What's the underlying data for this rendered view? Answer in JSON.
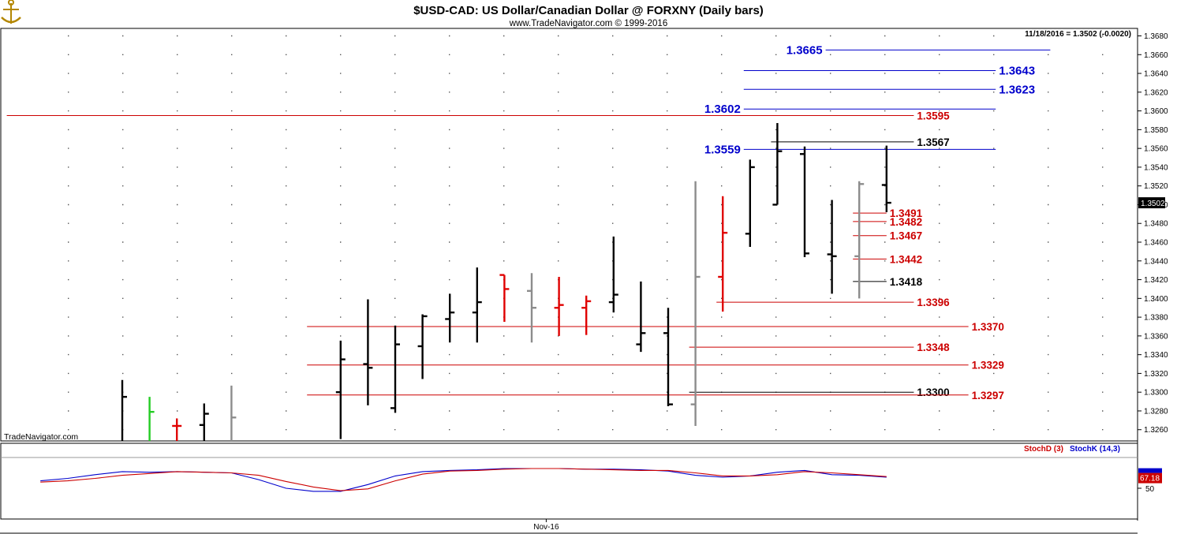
{
  "header": {
    "title": "$USD-CAD:  US Dollar/Canadian Dollar @ FORXNY  (Daily bars)",
    "subtitle": "www.TradeNavigator.com © 1999-2016",
    "readout": "11/18/2016 = 1.3502 (-0.0020)",
    "watermark": "TradeNavigator.com"
  },
  "chart_data": [
    {
      "type": "ohlc",
      "title": "$USD-CAD:  US Dollar/Canadian Dollar @ FORXNY  (Daily bars)",
      "ylim": [
        1.3248,
        1.3688
      ],
      "y_ticks": [
        "1.3260",
        "1.3280",
        "1.3300",
        "1.3320",
        "1.3340",
        "1.3360",
        "1.3380",
        "1.3400",
        "1.3420",
        "1.3440",
        "1.3460",
        "1.3480",
        "1.3500",
        "1.3520",
        "1.3540",
        "1.3560",
        "1.3580",
        "1.3600",
        "1.3620",
        "1.3640",
        "1.3660",
        "1.3680"
      ],
      "last_price": "1.3502",
      "x_label": "Nov-16",
      "x_label_bar": 19,
      "bar_colors": {
        "black": "#000000",
        "red": "#e00000",
        "gray": "#8c8c8c",
        "green": "#22cc22"
      },
      "bars": [
        {
          "i": 0,
          "o": 1.323,
          "h": 1.3313,
          "l": 1.318,
          "c": 1.3295,
          "color": "black"
        },
        {
          "i": 1,
          "o": 1.324,
          "h": 1.3295,
          "l": 1.32,
          "c": 1.3279,
          "color": "green"
        },
        {
          "i": 2,
          "o": 1.3264,
          "h": 1.3272,
          "l": 1.322,
          "c": 1.3264,
          "color": "red"
        },
        {
          "i": 3,
          "o": 1.3265,
          "h": 1.3288,
          "l": 1.32,
          "c": 1.3277,
          "color": "black"
        },
        {
          "i": 4,
          "o": 1.324,
          "h": 1.3307,
          "l": 1.318,
          "c": 1.3273,
          "color": "gray"
        },
        {
          "i": 8,
          "o": 1.33,
          "h": 1.3355,
          "l": 1.325,
          "c": 1.3335,
          "color": "black"
        },
        {
          "i": 9,
          "o": 1.333,
          "h": 1.3399,
          "l": 1.3286,
          "c": 1.3326,
          "color": "black"
        },
        {
          "i": 10,
          "o": 1.3283,
          "h": 1.3371,
          "l": 1.3278,
          "c": 1.3351,
          "color": "black"
        },
        {
          "i": 11,
          "o": 1.3349,
          "h": 1.3383,
          "l": 1.3314,
          "c": 1.3381,
          "color": "black"
        },
        {
          "i": 12,
          "o": 1.3378,
          "h": 1.3405,
          "l": 1.3353,
          "c": 1.3385,
          "color": "black"
        },
        {
          "i": 13,
          "o": 1.3385,
          "h": 1.3433,
          "l": 1.3353,
          "c": 1.3396,
          "color": "black"
        },
        {
          "i": 14,
          "o": 1.3425,
          "h": 1.3425,
          "l": 1.3375,
          "c": 1.341,
          "color": "red"
        },
        {
          "i": 15,
          "o": 1.3408,
          "h": 1.3427,
          "l": 1.3353,
          "c": 1.339,
          "color": "gray"
        },
        {
          "i": 16,
          "o": 1.339,
          "h": 1.3423,
          "l": 1.336,
          "c": 1.3393,
          "color": "red"
        },
        {
          "i": 17,
          "o": 1.339,
          "h": 1.3403,
          "l": 1.3361,
          "c": 1.3397,
          "color": "red"
        },
        {
          "i": 18,
          "o": 1.3396,
          "h": 1.3466,
          "l": 1.3385,
          "c": 1.3404,
          "color": "black"
        },
        {
          "i": 19,
          "o": 1.3351,
          "h": 1.3418,
          "l": 1.3343,
          "c": 1.3363,
          "color": "black"
        },
        {
          "i": 20,
          "o": 1.3363,
          "h": 1.339,
          "l": 1.3285,
          "c": 1.3287,
          "color": "black"
        },
        {
          "i": 21,
          "o": 1.3287,
          "h": 1.3525,
          "l": 1.3264,
          "c": 1.3423,
          "color": "gray"
        },
        {
          "i": 22,
          "o": 1.3423,
          "h": 1.3509,
          "l": 1.3386,
          "c": 1.347,
          "color": "red"
        },
        {
          "i": 23,
          "o": 1.3469,
          "h": 1.3548,
          "l": 1.3455,
          "c": 1.354,
          "color": "black"
        },
        {
          "i": 24,
          "o": 1.35,
          "h": 1.3587,
          "l": 1.35,
          "c": 1.3557,
          "color": "black"
        },
        {
          "i": 25,
          "o": 1.3554,
          "h": 1.3562,
          "l": 1.3444,
          "c": 1.3448,
          "color": "black"
        },
        {
          "i": 26,
          "o": 1.3447,
          "h": 1.3505,
          "l": 1.3405,
          "c": 1.3445,
          "color": "black"
        },
        {
          "i": 27,
          "o": 1.3445,
          "h": 1.3525,
          "l": 1.34,
          "c": 1.3522,
          "color": "gray"
        },
        {
          "i": 28,
          "o": 1.3521,
          "h": 1.3563,
          "l": 1.3492,
          "c": 1.3502,
          "color": "black"
        }
      ],
      "levels": [
        {
          "value": 1.3665,
          "label": "1.3665",
          "color": "#0000cc",
          "from_bar": 26,
          "to_bar": 34,
          "label_side": "left",
          "label_bar": 26
        },
        {
          "value": 1.3643,
          "label": "1.3643",
          "color": "#0000cc",
          "from_bar": 23,
          "to_bar": 32,
          "label_side": "right"
        },
        {
          "value": 1.3623,
          "label": "1.3623",
          "color": "#0000cc",
          "from_bar": 23,
          "to_bar": 32,
          "label_side": "right"
        },
        {
          "value": 1.3602,
          "label": "1.3602",
          "color": "#0000cc",
          "from_bar": 23,
          "to_bar": 32,
          "label_side": "left",
          "label_bar": 23
        },
        {
          "value": 1.3595,
          "label": "1.3595",
          "color": "#cc0000",
          "from_bar": -4,
          "to_bar": 29,
          "label_side": "right"
        },
        {
          "value": 1.3567,
          "label": "1.3567",
          "color": "#000000",
          "from_bar": 24,
          "to_bar": 29,
          "label_side": "right"
        },
        {
          "value": 1.3559,
          "label": "1.3559",
          "color": "#0000cc",
          "from_bar": 23,
          "to_bar": 32,
          "label_side": "left",
          "label_bar": 23
        },
        {
          "value": 1.3491,
          "label": "1.3491",
          "color": "#cc0000",
          "from_bar": 27,
          "to_bar": 28,
          "label_side": "right"
        },
        {
          "value": 1.3482,
          "label": "1.3482",
          "color": "#cc0000",
          "from_bar": 27,
          "to_bar": 28,
          "label_side": "right"
        },
        {
          "value": 1.3467,
          "label": "1.3467",
          "color": "#cc0000",
          "from_bar": 27,
          "to_bar": 28,
          "label_side": "right"
        },
        {
          "value": 1.3442,
          "label": "1.3442",
          "color": "#cc0000",
          "from_bar": 27,
          "to_bar": 28,
          "label_side": "right"
        },
        {
          "value": 1.3418,
          "label": "1.3418",
          "color": "#000000",
          "from_bar": 27,
          "to_bar": 28,
          "label_side": "right"
        },
        {
          "value": 1.3396,
          "label": "1.3396",
          "color": "#cc0000",
          "from_bar": 22,
          "to_bar": 29,
          "label_side": "right"
        },
        {
          "value": 1.337,
          "label": "1.3370",
          "color": "#cc0000",
          "from_bar": 7,
          "to_bar": 31,
          "label_side": "right"
        },
        {
          "value": 1.3348,
          "label": "1.3348",
          "color": "#cc0000",
          "from_bar": 21,
          "to_bar": 29,
          "label_side": "right"
        },
        {
          "value": 1.3329,
          "label": "1.3329",
          "color": "#cc0000",
          "from_bar": 7,
          "to_bar": 31,
          "label_side": "right"
        },
        {
          "value": 1.33,
          "label": "1.3300",
          "color": "#000000",
          "from_bar": 21,
          "to_bar": 29,
          "label_side": "right"
        },
        {
          "value": 1.3297,
          "label": "1.3297",
          "color": "#cc0000",
          "from_bar": 7,
          "to_bar": 31,
          "label_side": "right"
        }
      ]
    },
    {
      "type": "line",
      "legend": {
        "stoch_d": "StochD (3)",
        "stoch_k": "StochK (14,3)"
      },
      "ylim": [
        0,
        100
      ],
      "y_ticks": [
        "50"
      ],
      "last_value": "67.18",
      "x": [
        -3,
        -2,
        -1,
        0,
        1,
        2,
        3,
        4,
        5,
        6,
        7,
        8,
        9,
        10,
        11,
        12,
        13,
        14,
        15,
        16,
        17,
        18,
        19,
        20,
        21,
        22,
        23,
        24,
        25,
        26,
        27,
        28
      ],
      "series": [
        {
          "key": "stoch_k",
          "color": "#0000cc",
          "values": [
            62,
            66,
            72,
            77,
            76,
            77,
            76,
            75,
            64,
            50,
            45,
            45,
            56,
            70,
            77,
            79,
            80,
            82,
            82,
            82,
            81,
            81,
            80,
            78,
            71,
            68,
            70,
            76,
            79,
            72,
            71,
            68
          ]
        },
        {
          "key": "stoch_d",
          "color": "#cc0000",
          "values": [
            60,
            62,
            66,
            71,
            74,
            77,
            76,
            75,
            71,
            61,
            52,
            46,
            49,
            62,
            73,
            78,
            79,
            81,
            82,
            82,
            81,
            80,
            79,
            79,
            75,
            70,
            70,
            72,
            77,
            75,
            72,
            69
          ]
        }
      ]
    }
  ]
}
